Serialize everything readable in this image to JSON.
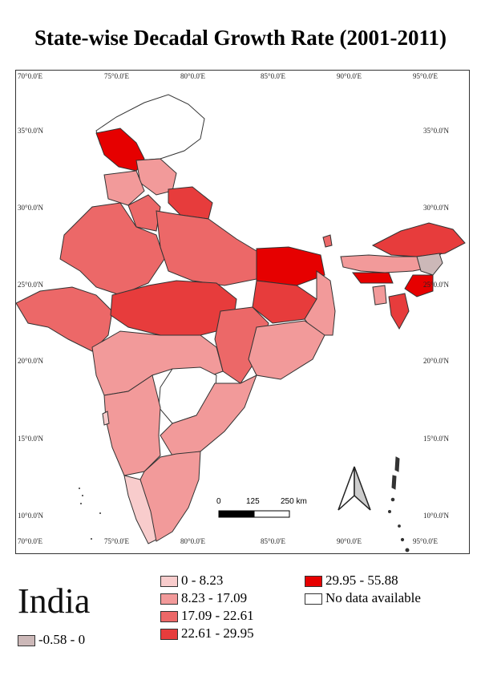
{
  "title": "State-wise Decadal Growth Rate (2001-2011)",
  "country_label": "India",
  "axes": {
    "longitudes": [
      "70°0.0'E",
      "75°0.0'E",
      "80°0.0'E",
      "85°0.0'E",
      "90°0.0'E",
      "95°0.0'E"
    ],
    "latitudes": [
      "35°0.0'N",
      "30°0.0'N",
      "25°0.0'N",
      "20°0.0'N",
      "15°0.0'N",
      "10°0.0'N"
    ]
  },
  "scale_bar": {
    "labels": [
      "0",
      "125",
      "250 km"
    ]
  },
  "legend": [
    {
      "label": "-0.58 - 0",
      "color": "#ccb8b8"
    },
    {
      "label": "0 - 8.23",
      "color": "#f8cccc"
    },
    {
      "label": "8.23 - 17.09",
      "color": "#f29a9a"
    },
    {
      "label": "17.09 - 22.61",
      "color": "#ec6868"
    },
    {
      "label": "22.61 - 29.95",
      "color": "#e73c3c"
    },
    {
      "label": "29.95 - 55.88",
      "color": "#e60000"
    },
    {
      "label": "No data available",
      "color": "#ffffff"
    }
  ]
}
